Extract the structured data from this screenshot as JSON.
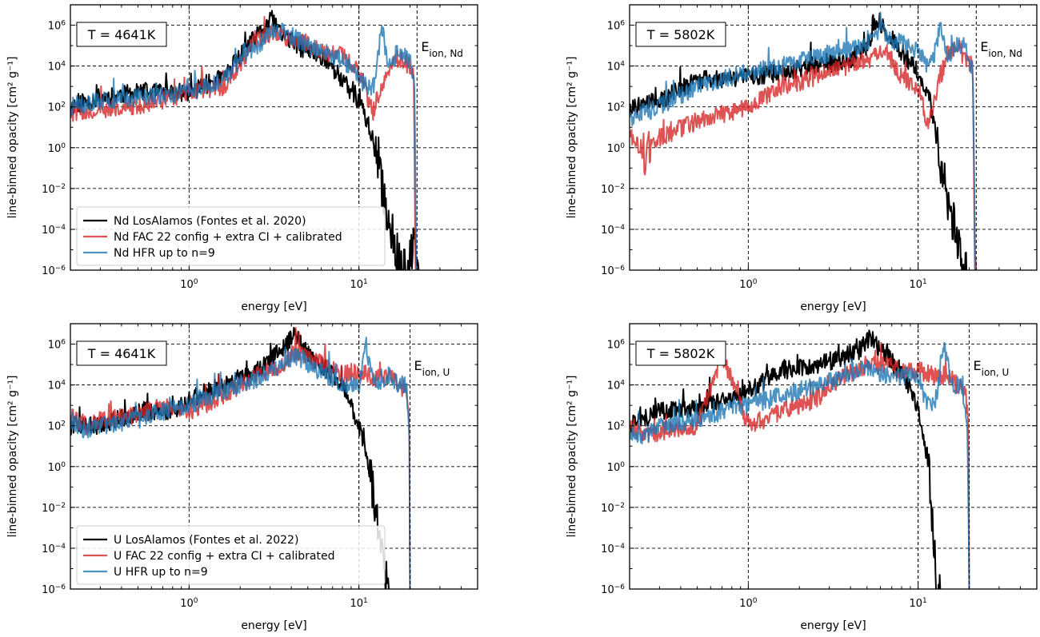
{
  "colors": {
    "losalamos": "#000000",
    "fac": "#d62728",
    "hfr": "#1f77b4"
  },
  "chart_data": [
    {
      "type": "line",
      "temperature_label": "T = 4641K",
      "eion_label": "E",
      "eion_sub": "ion, Nd",
      "xlabel": "energy [eV]",
      "ylabel": "line-binned opacity [cm² g⁻¹]",
      "xscale": "log",
      "yscale": "log",
      "xlim": [
        0.2,
        50
      ],
      "ylim": [
        1e-06,
        10000000.0
      ],
      "x_ticks": [
        "10^0",
        "10^1"
      ],
      "y_ticks": [
        "10^-6",
        "10^-4",
        "10^-2",
        "10^0",
        "10^2",
        "10^4",
        "10^6"
      ],
      "grid": true,
      "legend_position": "lower-left",
      "vlines": [
        10,
        22
      ],
      "series": [
        {
          "name": "Nd LosAlamos (Fontes et al. 2020)",
          "color_key": "losalamos",
          "x": [
            0.2,
            0.3,
            0.5,
            1.0,
            1.6,
            2.5,
            3.1,
            3.5,
            4.5,
            6.5,
            8.5,
            10.5,
            12.0,
            13.0,
            14.5,
            16.0,
            18.0,
            19.5,
            20.5,
            21.5,
            22.5
          ],
          "y": [
            100.0,
            300.0,
            500.0,
            500.0,
            3000.0,
            300000.0,
            2000000.0,
            400000.0,
            80000.0,
            20000.0,
            1000.0,
            100.0,
            3.0,
            0.1,
            0.001,
            3e-05,
            1e-06,
            1e-06,
            1e-05,
            1e-05,
            1e-06
          ]
        },
        {
          "name": "Nd FAC 22 config + extra CI + calibrated",
          "color_key": "fac",
          "x": [
            0.2,
            0.3,
            0.5,
            1.0,
            1.6,
            2.5,
            3.1,
            3.5,
            4.5,
            6.5,
            8.5,
            10.5,
            12.0,
            14.0,
            16.0,
            18.0,
            20.0,
            21.0,
            21.5,
            22.0
          ],
          "y": [
            50.0,
            80.0,
            100.0,
            500.0,
            1000.0,
            200000.0,
            400000.0,
            300000.0,
            200000.0,
            40000.0,
            30000.0,
            2000.0,
            50.0,
            2000.0,
            30000.0,
            20000.0,
            10000.0,
            5000.0,
            1e-06,
            1e-06
          ]
        },
        {
          "name": "Nd HFR up to n=9",
          "color_key": "hfr",
          "x": [
            0.2,
            0.3,
            0.5,
            1.0,
            1.6,
            2.5,
            3.2,
            4.0,
            5.0,
            7.0,
            9.0,
            11.0,
            12.5,
            13.5,
            15.0,
            17.0,
            19.0,
            20.5,
            21.3,
            21.8
          ],
          "y": [
            100.0,
            200.0,
            300.0,
            500.0,
            2000.0,
            100000.0,
            600000.0,
            300000.0,
            100000.0,
            30000.0,
            10000.0,
            1000.0,
            1000.0,
            1000000.0,
            10000.0,
            50000.0,
            30000.0,
            10000.0,
            1000.0,
            1e-06
          ]
        }
      ]
    },
    {
      "type": "line",
      "temperature_label": "T = 5802K",
      "eion_label": "E",
      "eion_sub": "ion, Nd",
      "xlabel": "energy [eV]",
      "ylabel": "line-binned opacity [cm² g⁻¹]",
      "xscale": "log",
      "yscale": "log",
      "xlim": [
        0.2,
        50
      ],
      "ylim": [
        1e-06,
        10000000.0
      ],
      "x_ticks": [
        "10^0",
        "10^1"
      ],
      "y_ticks": [
        "10^-6",
        "10^-4",
        "10^-2",
        "10^0",
        "10^2",
        "10^4",
        "10^6"
      ],
      "grid": true,
      "vlines": [
        10,
        22
      ],
      "series": [
        {
          "name": "Nd LosAlamos",
          "color_key": "losalamos",
          "x": [
            0.2,
            0.3,
            0.5,
            1.0,
            1.6,
            2.5,
            4.0,
            5.0,
            5.8,
            6.5,
            8.0,
            10.0,
            11.5,
            12.5,
            13.5,
            14.5,
            15.5,
            16.5,
            17.5,
            18.5,
            19.5
          ],
          "y": [
            100.0,
            200.0,
            2000.0,
            3000.0,
            5000.0,
            10000.0,
            20000.0,
            100000.0,
            2000000.0,
            500000.0,
            50000.0,
            5000.0,
            500.0,
            10.0,
            0.1,
            0.01,
            0.001,
            0.0001,
            1e-05,
            1e-06,
            1e-06
          ]
        },
        {
          "name": "Nd FAC",
          "color_key": "fac",
          "x": [
            0.2,
            0.25,
            0.3,
            0.5,
            1.0,
            1.6,
            2.5,
            3.5,
            5.0,
            6.5,
            8.0,
            10.0,
            11.5,
            13.0,
            15.0,
            17.0,
            19.0,
            21.0,
            21.5,
            22.0
          ],
          "y": [
            5.0,
            0.5,
            3.0,
            20.0,
            100.0,
            1000.0,
            3000.0,
            8000.0,
            20000.0,
            50000.0,
            3000.0,
            1000.0,
            10.0,
            1000.0,
            50000.0,
            100000.0,
            20000.0,
            10000.0,
            1e-06,
            1e-06
          ]
        },
        {
          "name": "Nd HFR",
          "color_key": "hfr",
          "x": [
            0.2,
            0.3,
            0.5,
            1.0,
            1.6,
            2.5,
            3.5,
            5.0,
            6.0,
            7.0,
            8.5,
            10.0,
            11.5,
            12.5,
            13.5,
            15.0,
            17.0,
            19.0,
            21.0,
            21.8
          ],
          "y": [
            30.0,
            100.0,
            1000.0,
            5000.0,
            10000.0,
            30000.0,
            50000.0,
            100000.0,
            800000.0,
            200000.0,
            100000.0,
            50000.0,
            10000.0,
            30000.0,
            1000000.0,
            30000.0,
            100000.0,
            100000.0,
            3000.0,
            1e-06
          ]
        }
      ]
    },
    {
      "type": "line",
      "temperature_label": "T = 4641K",
      "eion_label": "E",
      "eion_sub": "ion, U",
      "xlabel": "energy [eV]",
      "ylabel": "line-binned opacity [cm² g⁻¹]",
      "xscale": "log",
      "yscale": "log",
      "xlim": [
        0.2,
        50
      ],
      "ylim": [
        1e-06,
        10000000.0
      ],
      "x_ticks": [
        "10^0",
        "10^1"
      ],
      "y_ticks": [
        "10^-6",
        "10^-4",
        "10^-2",
        "10^0",
        "10^2",
        "10^4",
        "10^6"
      ],
      "grid": true,
      "legend_position": "lower-left",
      "vlines": [
        10,
        20
      ],
      "series": [
        {
          "name": "U LosAlamos (Fontes et al. 2022)",
          "color_key": "losalamos",
          "x": [
            0.2,
            0.3,
            0.5,
            0.8,
            1.0,
            1.6,
            2.5,
            3.5,
            4.2,
            5.0,
            6.5,
            8.0,
            10.0,
            11.5,
            12.5,
            13.5,
            14.5,
            15.0
          ],
          "y": [
            100.0,
            100.0,
            500.0,
            500.0,
            2000.0,
            10000.0,
            50000.0,
            500000.0,
            3000000.0,
            300000.0,
            50000.0,
            10000.0,
            100.0,
            1.0,
            0.01,
            0.0001,
            1e-06,
            1e-06
          ]
        },
        {
          "name": "U FAC 22 config + extra CI + calibrated",
          "color_key": "fac",
          "x": [
            0.2,
            0.25,
            0.3,
            0.5,
            0.7,
            1.0,
            1.6,
            2.5,
            3.5,
            4.2,
            5.0,
            6.5,
            8.0,
            10.0,
            12.5,
            15.0,
            17.0,
            19.0,
            19.8,
            20.0
          ],
          "y": [
            300.0,
            100.0,
            200.0,
            300.0,
            1000.0,
            500.0,
            3000.0,
            30000.0,
            100000.0,
            400000.0,
            200000.0,
            100000.0,
            30000.0,
            50000.0,
            20000.0,
            30000.0,
            10000.0,
            5000.0,
            100.0,
            1e-06
          ]
        },
        {
          "name": "U HFR up to n=9",
          "color_key": "hfr",
          "x": [
            0.2,
            0.25,
            0.3,
            0.5,
            0.7,
            1.0,
            1.6,
            2.5,
            3.5,
            4.2,
            5.0,
            6.5,
            8.0,
            10.0,
            11.0,
            12.0,
            13.0,
            15.0,
            17.0,
            19.0,
            19.8,
            20.0
          ],
          "y": [
            200.0,
            50.0,
            100.0,
            200.0,
            500.0,
            1000.0,
            5000.0,
            20000.0,
            100000.0,
            300000.0,
            100000.0,
            30000.0,
            10000.0,
            10000.0,
            1000000.0,
            20000.0,
            10000.0,
            30000.0,
            10000.0,
            10000.0,
            100.0,
            1e-06
          ]
        }
      ]
    },
    {
      "type": "line",
      "temperature_label": "T = 5802K",
      "eion_label": "E",
      "eion_sub": "ion, U",
      "xlabel": "energy [eV]",
      "ylabel": "line-binned opacity [cm² g⁻¹]",
      "xscale": "log",
      "yscale": "log",
      "xlim": [
        0.2,
        50
      ],
      "ylim": [
        1e-06,
        10000000.0
      ],
      "x_ticks": [
        "10^0",
        "10^1"
      ],
      "y_ticks": [
        "10^-6",
        "10^-4",
        "10^-2",
        "10^0",
        "10^2",
        "10^4",
        "10^6"
      ],
      "grid": true,
      "vlines": [
        10,
        20
      ],
      "series": [
        {
          "name": "U LosAlamos",
          "color_key": "losalamos",
          "x": [
            0.2,
            0.3,
            0.5,
            0.8,
            1.0,
            1.6,
            2.5,
            3.5,
            4.5,
            5.2,
            6.5,
            8.0,
            9.5,
            10.5,
            11.5,
            12.0,
            12.5,
            13.0,
            13.5
          ],
          "y": [
            100.0,
            500.0,
            800.0,
            2000.0,
            5000.0,
            50000.0,
            100000.0,
            200000.0,
            500000.0,
            2000000.0,
            300000.0,
            30000.0,
            3000.0,
            100.0,
            1.0,
            0.01,
            0.0001,
            1e-06,
            1e-06
          ]
        },
        {
          "name": "U FAC",
          "color_key": "fac",
          "x": [
            0.2,
            0.25,
            0.3,
            0.5,
            0.7,
            1.0,
            1.6,
            2.5,
            3.5,
            5.0,
            6.5,
            8.0,
            10.0,
            12.5,
            15.0,
            17.0,
            19.0,
            19.8,
            20.0
          ],
          "y": [
            100.0,
            30.0,
            50.0,
            100.0,
            300000.0,
            100.0,
            500.0,
            2000.0,
            20000.0,
            100000.0,
            100000.0,
            50000.0,
            50000.0,
            30000.0,
            30000.0,
            10000.0,
            5000.0,
            100.0,
            1e-06
          ]
        },
        {
          "name": "U HFR",
          "color_key": "hfr",
          "x": [
            0.2,
            0.25,
            0.3,
            0.5,
            0.7,
            1.0,
            1.6,
            2.5,
            3.5,
            5.0,
            6.5,
            8.0,
            10.0,
            11.0,
            12.0,
            13.0,
            14.0,
            16.0,
            18.0,
            19.5,
            20.0
          ],
          "y": [
            50.0,
            30.0,
            100.0,
            200.0,
            500.0,
            1000.0,
            3000.0,
            10000.0,
            20000.0,
            80000.0,
            30000.0,
            30000.0,
            30000.0,
            2000.0,
            1000.0,
            3000.0,
            1000000.0,
            10000.0,
            10000.0,
            100.0,
            1e-06
          ]
        }
      ]
    }
  ]
}
